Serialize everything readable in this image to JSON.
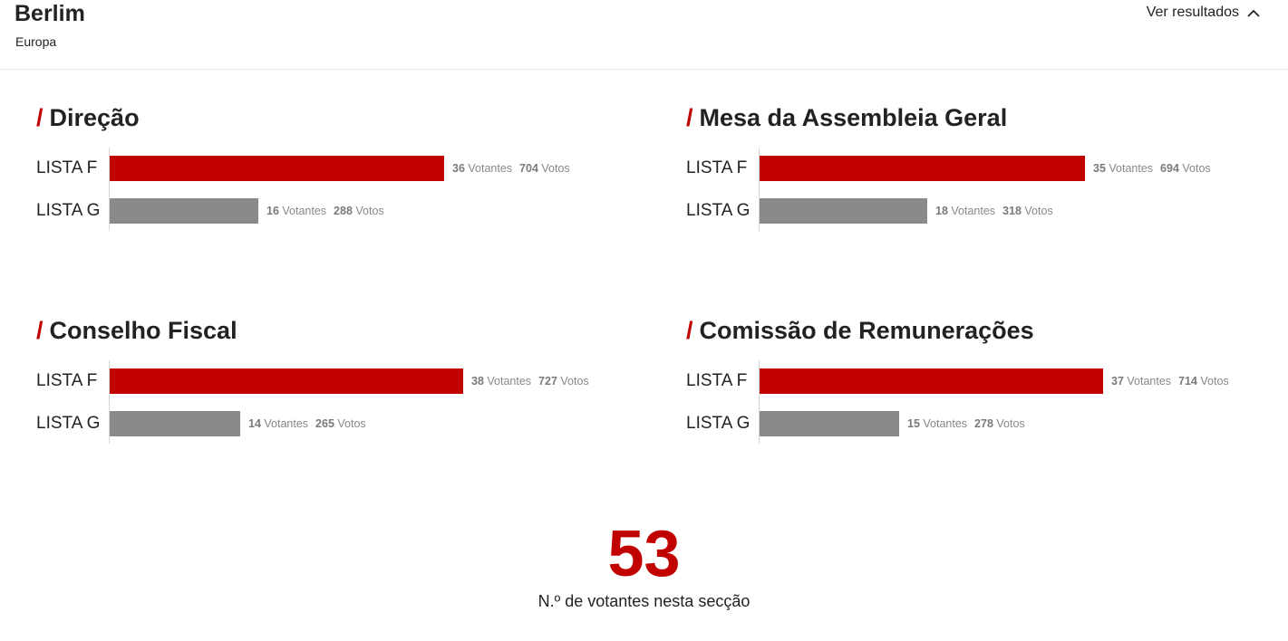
{
  "header": {
    "place": "Berlim",
    "region": "Europa",
    "toggle_label": "Ver resultados",
    "toggle_icon": "chevron-up-icon"
  },
  "colors": {
    "accent": "#c10000",
    "secondary_bar": "#8a8a8a"
  },
  "units": {
    "voters": "Votantes",
    "votes": "Votos"
  },
  "sections": [
    {
      "title": "Direção",
      "rows": [
        {
          "label": "LISTA F",
          "voters": "36",
          "votes": "704"
        },
        {
          "label": "LISTA G",
          "voters": "16",
          "votes": "288"
        }
      ]
    },
    {
      "title": "Mesa da Assembleia Geral",
      "rows": [
        {
          "label": "LISTA F",
          "voters": "35",
          "votes": "694"
        },
        {
          "label": "LISTA G",
          "voters": "18",
          "votes": "318"
        }
      ]
    },
    {
      "title": "Conselho Fiscal",
      "rows": [
        {
          "label": "LISTA F",
          "voters": "38",
          "votes": "727"
        },
        {
          "label": "LISTA G",
          "voters": "14",
          "votes": "265"
        }
      ]
    },
    {
      "title": "Comissão de Remunerações",
      "rows": [
        {
          "label": "LISTA F",
          "voters": "37",
          "votes": "714"
        },
        {
          "label": "LISTA G",
          "voters": "15",
          "votes": "278"
        }
      ]
    }
  ],
  "total": {
    "value": "53",
    "label": "N.º de votantes nesta secção"
  }
}
